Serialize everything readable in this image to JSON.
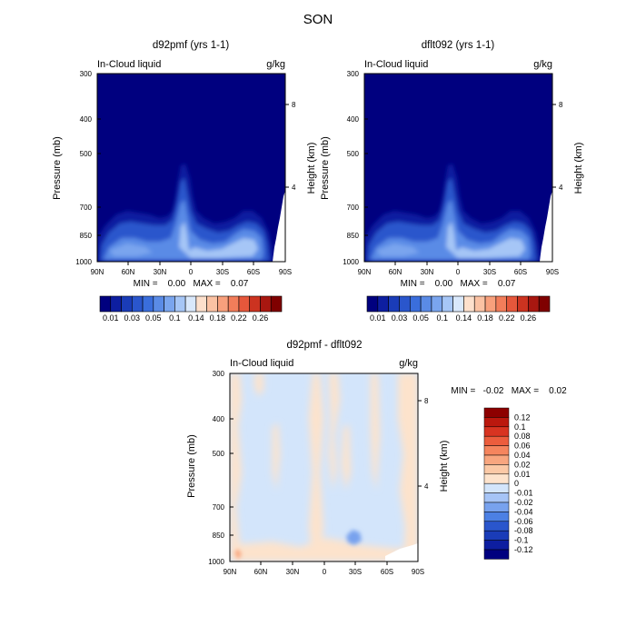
{
  "figure": {
    "title": "SON",
    "colors": {
      "abs_scale": [
        "#00007f",
        "#0d1ea0",
        "#1a3cb8",
        "#2a56cc",
        "#3a6edc",
        "#5a8be6",
        "#7aa5ee",
        "#a6c6f6",
        "#d9e8fb",
        "#fde0cc",
        "#fbc2a3",
        "#f8a07c",
        "#f27d5a",
        "#e6573b",
        "#cc3320",
        "#a81710",
        "#7f0000"
      ],
      "diff_scale": [
        "#00007f",
        "#0d1ea0",
        "#1a3cb8",
        "#2a56cc",
        "#4c80e4",
        "#78a2ee",
        "#a6c4f6",
        "#d3e5fb",
        "#fde3cc",
        "#fbc9a6",
        "#f8a67f",
        "#f5855e",
        "#ec5d3d",
        "#d83421",
        "#bb180e",
        "#8d0000"
      ]
    }
  },
  "chart_data": [
    {
      "type": "heatmap",
      "title": "d92pmf (yrs 1-1)",
      "subtitle_left": "In-Cloud liquid",
      "subtitle_right": "g/kg",
      "ylabel": "Pressure (mb)",
      "y2label": "Height (km)",
      "x_ticks": [
        "90N",
        "60N",
        "30N",
        "0",
        "30S",
        "60S",
        "90S"
      ],
      "y_ticks": [
        "300",
        "400",
        "500",
        "700",
        "850",
        "1000"
      ],
      "y2_ticks": [
        "8",
        "4"
      ],
      "stats": "MIN =    0.00   MAX =    0.07",
      "colorbar_labels": [
        "0.01",
        "0.03",
        "0.05",
        "0.1",
        "0.14",
        "0.18",
        "0.22",
        "0.26"
      ],
      "colorbar_orientation": "horizontal",
      "ylim": [
        1000,
        300
      ],
      "log_pressure": true,
      "min": 0.0,
      "max": 0.07,
      "background_level": 0,
      "features": [
        {
          "name": "equatorial-plume",
          "lat": 2,
          "p_top": 520,
          "p_bottom": 950,
          "level": 5
        },
        {
          "name": "southern-midlat-cloud",
          "lat": -50,
          "p_top": 700,
          "p_bottom": 950,
          "level": 6
        },
        {
          "name": "northern-midlat-cloud",
          "lat": 55,
          "p_top": 720,
          "p_bottom": 980,
          "level": 5
        },
        {
          "name": "tropical-low-cloud",
          "lat": -20,
          "p_top": 780,
          "p_bottom": 960,
          "level": 4
        }
      ]
    },
    {
      "type": "heatmap",
      "title": "dflt092 (yrs 1-1)",
      "subtitle_left": "In-Cloud liquid",
      "subtitle_right": "g/kg",
      "ylabel": "Pressure (mb)",
      "y2label": "Height (km)",
      "x_ticks": [
        "90N",
        "60N",
        "30N",
        "0",
        "30S",
        "60S",
        "90S"
      ],
      "y_ticks": [
        "300",
        "400",
        "500",
        "700",
        "850",
        "1000"
      ],
      "y2_ticks": [
        "8",
        "4"
      ],
      "stats": "MIN =    0.00   MAX =    0.07",
      "colorbar_labels": [
        "0.01",
        "0.03",
        "0.05",
        "0.1",
        "0.14",
        "0.18",
        "0.22",
        "0.26"
      ],
      "colorbar_orientation": "horizontal",
      "ylim": [
        1000,
        300
      ],
      "log_pressure": true,
      "min": 0.0,
      "max": 0.07,
      "background_level": 0,
      "features": [
        {
          "name": "equatorial-plume",
          "lat": 2,
          "p_top": 520,
          "p_bottom": 950,
          "level": 5
        },
        {
          "name": "southern-midlat-cloud",
          "lat": -50,
          "p_top": 700,
          "p_bottom": 950,
          "level": 6
        },
        {
          "name": "northern-midlat-cloud",
          "lat": 55,
          "p_top": 720,
          "p_bottom": 980,
          "level": 5
        },
        {
          "name": "tropical-low-cloud",
          "lat": -20,
          "p_top": 780,
          "p_bottom": 960,
          "level": 4
        }
      ]
    },
    {
      "type": "heatmap",
      "title": "d92pmf - dflt092",
      "subtitle_left": "In-Cloud liquid",
      "subtitle_right": "g/kg",
      "ylabel": "Pressure (mb)",
      "y2label": "Height (km)",
      "x_ticks": [
        "90N",
        "60N",
        "30N",
        "0",
        "30S",
        "60S",
        "90S"
      ],
      "y_ticks": [
        "300",
        "400",
        "500",
        "700",
        "850",
        "1000"
      ],
      "y2_ticks": [
        "8",
        "4"
      ],
      "stats": "MIN =   -0.02   MAX =    0.02",
      "colorbar_labels": [
        "0.12",
        "0.1",
        "0.08",
        "0.06",
        "0.04",
        "0.02",
        "0.01",
        "0",
        "-0.01",
        "-0.02",
        "-0.04",
        "-0.06",
        "-0.08",
        "-0.1",
        "-0.12"
      ],
      "colorbar_orientation": "vertical",
      "ylim": [
        1000,
        300
      ],
      "log_pressure": true,
      "min": -0.02,
      "max": 0.02,
      "background_level": "-0.01 to 0",
      "features": [
        {
          "name": "positive-stripe",
          "lat": 75,
          "p_top": 300,
          "p_bottom": 1000,
          "sign": "positive"
        },
        {
          "name": "positive-stripe",
          "lat": 8,
          "p_top": 300,
          "p_bottom": 1000,
          "sign": "positive"
        },
        {
          "name": "positive-stripe",
          "lat": -8,
          "p_top": 300,
          "p_bottom": 800,
          "sign": "positive"
        },
        {
          "name": "positive-stripe",
          "lat": -80,
          "p_top": 300,
          "p_bottom": 1000,
          "sign": "positive"
        },
        {
          "name": "negative-blob",
          "lat": -28,
          "p_top": 860,
          "p_bottom": 900,
          "sign": "negative"
        }
      ]
    }
  ]
}
